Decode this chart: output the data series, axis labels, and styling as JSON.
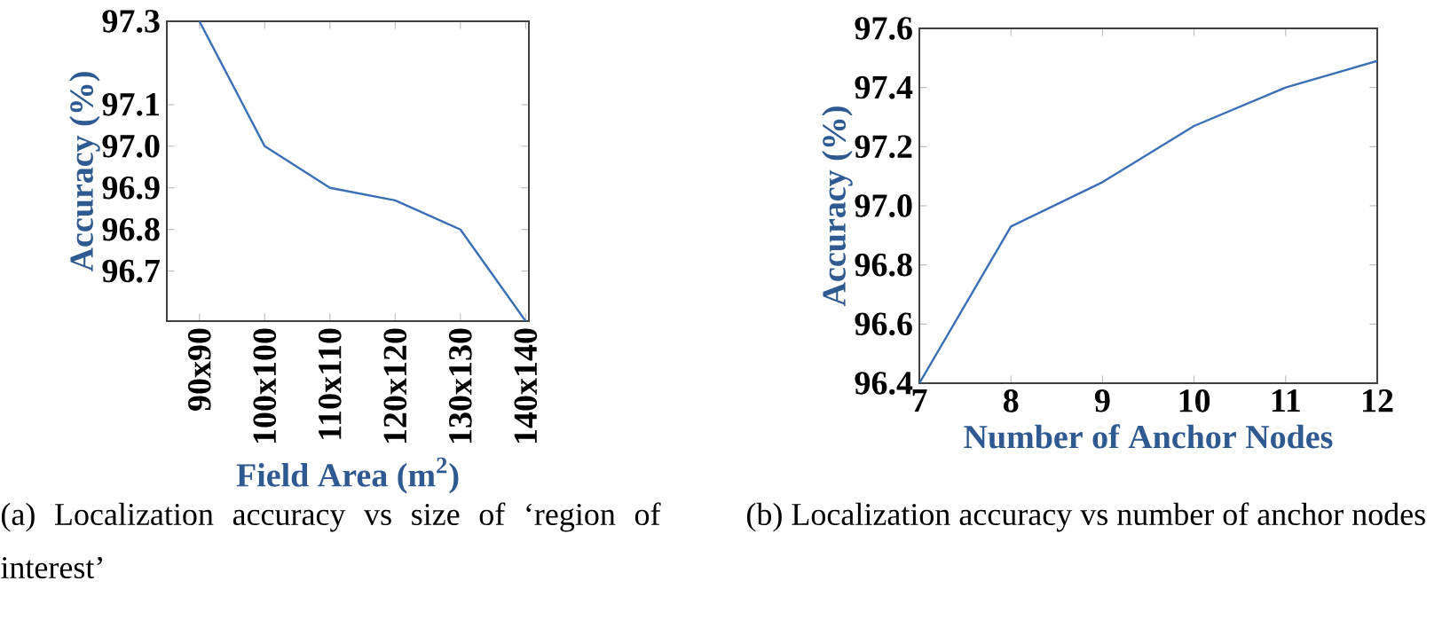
{
  "chart_data": [
    {
      "type": "line",
      "categories": [
        "90x90",
        "100x100",
        "110x110",
        "120x120",
        "130x130",
        "140x140"
      ],
      "values": [
        97.3,
        97.0,
        96.9,
        96.87,
        96.8,
        96.58
      ],
      "color": "#3a6fb5",
      "ylim": [
        96.58,
        97.3
      ],
      "yticks": [
        96.7,
        96.8,
        96.9,
        {
          "value": 97,
          "label": "97.0"
        },
        97.1,
        97.3
      ],
      "xlabel": "Field Area (m$^{2}$)",
      "ylabel": "Accuracy (%)",
      "grid": false,
      "annotations": [
        "(a) Localization accuracy vs size of ‘region of interest’"
      ]
    },
    {
      "type": "line",
      "x": [
        7,
        8,
        9,
        10,
        11,
        12
      ],
      "values": [
        96.4,
        96.93,
        97.08,
        97.27,
        97.4,
        97.49
      ],
      "color": "#3a6fb5",
      "xlim": [
        7,
        12
      ],
      "xticks": [
        7,
        8,
        9,
        10,
        11,
        12
      ],
      "ylim": [
        96.4,
        97.6
      ],
      "yticks": [
        96.4,
        96.6,
        96.8,
        {
          "value": 97,
          "label": "97.0"
        },
        97.2,
        97.4,
        97.6
      ],
      "xlabel": "Number of Anchor Nodes",
      "ylabel": "Accuracy (%)",
      "grid": false,
      "annotations": [
        "(b) Localization accuracy vs number of anchor nodes"
      ]
    }
  ]
}
